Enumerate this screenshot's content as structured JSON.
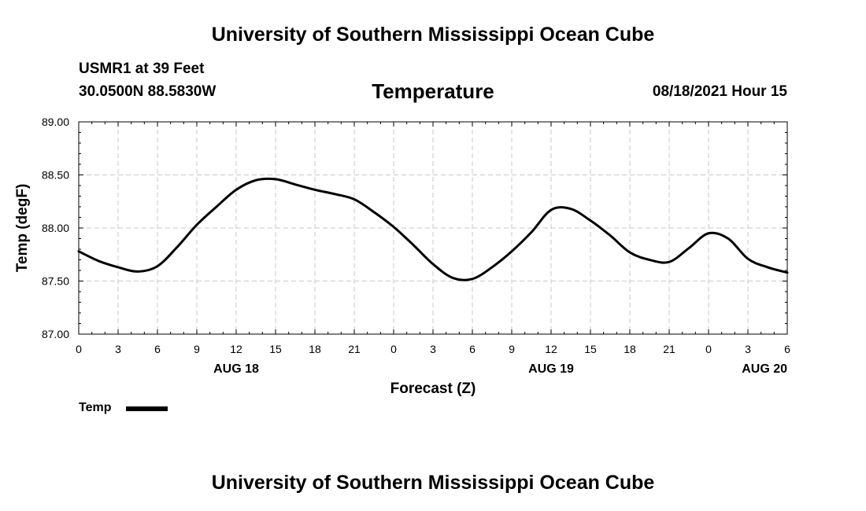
{
  "header": {
    "title": "University of Southern Mississippi Ocean Cube",
    "station": "USMR1 at 39 Feet",
    "coords": "30.0500N  88.5830W",
    "variable": "Temperature",
    "datetime": "08/18/2021 Hour 15"
  },
  "footer": {
    "title": "University of Southern Mississippi Ocean Cube"
  },
  "legend": {
    "label": "Temp"
  },
  "chart_data": {
    "type": "line",
    "title": "Temperature",
    "xlabel": "Forecast (Z)",
    "ylabel": "Temp (degF)",
    "ylim": [
      87.0,
      89.0
    ],
    "y_ticks": [
      "87.00",
      "87.50",
      "88.00",
      "88.50",
      "89.00"
    ],
    "xlim": [
      0,
      54
    ],
    "x_ticks": [
      "0",
      "3",
      "6",
      "9",
      "12",
      "15",
      "18",
      "21",
      "0",
      "3",
      "6",
      "9",
      "12",
      "15",
      "18",
      "21",
      "0",
      "3",
      "6"
    ],
    "date_labels": [
      "AUG 18",
      "AUG 19",
      "AUG 20"
    ],
    "grid": true,
    "series": [
      {
        "name": "Temp",
        "color": "#000000",
        "x": [
          0,
          1.5,
          3,
          4.5,
          6,
          7.5,
          9,
          10.5,
          12,
          13.5,
          15,
          16.5,
          18,
          19.5,
          21,
          22.5,
          24,
          25.5,
          27,
          28.5,
          30,
          31.5,
          33,
          34.5,
          36,
          37.5,
          39,
          40.5,
          42,
          43.5,
          45,
          46.5,
          48,
          49.5,
          51,
          52.5,
          54
        ],
        "values": [
          87.78,
          87.69,
          87.63,
          87.59,
          87.64,
          87.82,
          88.03,
          88.2,
          88.36,
          88.45,
          88.46,
          88.41,
          88.36,
          88.32,
          88.27,
          88.15,
          88.01,
          87.84,
          87.66,
          87.53,
          87.52,
          87.63,
          87.78,
          87.96,
          88.17,
          88.18,
          88.07,
          87.93,
          87.77,
          87.7,
          87.68,
          87.81,
          87.95,
          87.9,
          87.71,
          87.63,
          87.58
        ]
      }
    ]
  }
}
